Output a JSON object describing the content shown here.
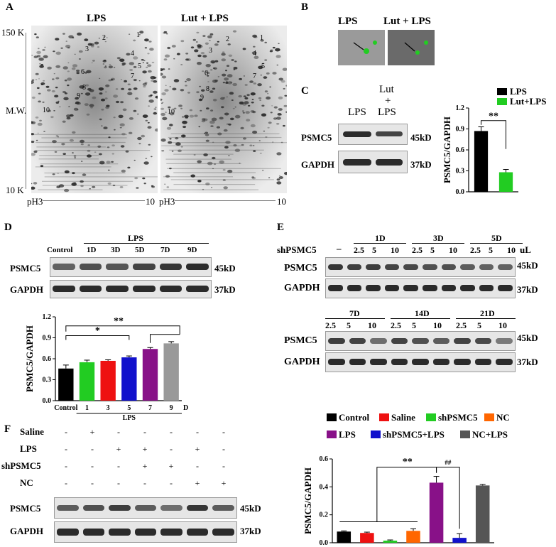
{
  "panels": [
    "A",
    "B",
    "C",
    "D",
    "E",
    "F"
  ],
  "A": {
    "left_title": "LPS",
    "right_title": "Lut + LPS",
    "mw_top": "150 K",
    "mw_mid": "M.W.",
    "mw_bottom": "10 K",
    "ph_left_start": "pH3",
    "ph_left_end": "10",
    "ph_right_start": "pH3",
    "ph_right_end": "10",
    "spot_numbers": [
      "1",
      "2",
      "3",
      "4",
      "5",
      "6",
      "7",
      "8",
      "9",
      "10"
    ]
  },
  "B": {
    "left": "LPS",
    "right": "Lut + LPS"
  },
  "C": {
    "lane1": "LPS",
    "lane2_top": "Lut",
    "lane2_mid": "+",
    "lane2_bot": "LPS",
    "row1": "PSMC5",
    "row1_kd": "45kD",
    "row2": "GAPDH",
    "row2_kd": "37kD",
    "legend": [
      "LPS",
      "Lut+LPS"
    ],
    "sig": "**",
    "ylabel": "PSMC5/GAPDH",
    "yticks": [
      "0.0",
      "0.3",
      "0.6",
      "0.9",
      "1.2"
    ]
  },
  "D": {
    "group": "LPS",
    "lanes": [
      "Control",
      "1D",
      "3D",
      "5D",
      "7D",
      "9D"
    ],
    "row1": "PSMC5",
    "row1_kd": "45kD",
    "row2": "GAPDH",
    "row2_kd": "37kD",
    "sig1": "**",
    "sig2": "*",
    "ylabel": "PSMC5/GAPDH",
    "yticks": [
      "0.0",
      "0.3",
      "0.6",
      "0.9",
      "1.2"
    ],
    "xticks": [
      "Control",
      "1",
      "3",
      "5",
      "7",
      "9"
    ],
    "xunit": "D",
    "xgroup": "LPS"
  },
  "E": {
    "sh_label": "shPSMC5",
    "dash": "–",
    "days_top": [
      "1D",
      "3D",
      "5D"
    ],
    "days_bottom": [
      "7D",
      "14D",
      "21D"
    ],
    "doses": [
      "2.5",
      "5",
      "10"
    ],
    "unit": "uL",
    "row1": "PSMC5",
    "row1_kd": "45kD",
    "row2": "GAPDH",
    "row2_kd": "37kD"
  },
  "F": {
    "rows": [
      {
        "name": "Saline",
        "vals": [
          "-",
          "+",
          "-",
          "-",
          "-",
          "-",
          "-"
        ]
      },
      {
        "name": "LPS",
        "vals": [
          "-",
          "-",
          "+",
          "+",
          "-",
          "+",
          "-"
        ]
      },
      {
        "name": "shPSMC5",
        "vals": [
          "-",
          "-",
          "-",
          "+",
          "+",
          "-",
          "-"
        ]
      },
      {
        "name": "NC",
        "vals": [
          "-",
          "-",
          "-",
          "-",
          "-",
          "+",
          "+"
        ]
      }
    ],
    "blot1": "PSMC5",
    "blot1_kd": "45kD",
    "blot2": "GAPDH",
    "blot2_kd": "37kD",
    "legend": [
      "Control",
      "Saline",
      "shPSMC5",
      "NC",
      "LPS",
      "shPSMC5+LPS",
      "NC+LPS"
    ],
    "sig1": "**",
    "sig2": "##",
    "ylabel": "PSMC5/GAPDH",
    "yticks": [
      "0.0",
      "0.2",
      "0.4",
      "0.6"
    ]
  },
  "colors": {
    "black": "#000000",
    "green": "#22cc22",
    "red": "#ee1111",
    "blue": "#1111cc",
    "purple": "#881188",
    "grey": "#999999",
    "orange": "#ff6600",
    "dkgrey": "#555555"
  },
  "chart_data": [
    {
      "type": "bar",
      "categories": [
        "LPS",
        "Lut+LPS"
      ],
      "values": [
        0.87,
        0.28
      ],
      "ylabel": "PSMC5/GAPDH",
      "ylim": [
        0,
        1.2
      ],
      "colors": [
        "#000000",
        "#22cc22"
      ]
    },
    {
      "type": "bar",
      "categories": [
        "Control",
        "1",
        "3",
        "5",
        "7",
        "9"
      ],
      "values": [
        0.46,
        0.55,
        0.57,
        0.62,
        0.74,
        0.82
      ],
      "ylabel": "PSMC5/GAPDH",
      "ylim": [
        0,
        1.2
      ],
      "colors": [
        "#000000",
        "#22cc22",
        "#ee1111",
        "#1111cc",
        "#881188",
        "#999999"
      ]
    },
    {
      "type": "bar",
      "categories": [
        "Control",
        "Saline",
        "shPSMC5",
        "NC",
        "LPS",
        "shPSMC5+LPS",
        "NC+LPS"
      ],
      "values": [
        0.08,
        0.07,
        0.015,
        0.085,
        0.43,
        0.035,
        0.41
      ],
      "ylabel": "PSMC5/GAPDH",
      "ylim": [
        0,
        0.6
      ],
      "colors": [
        "#000000",
        "#ee1111",
        "#22cc22",
        "#ff6600",
        "#881188",
        "#1111cc",
        "#555555"
      ]
    }
  ]
}
